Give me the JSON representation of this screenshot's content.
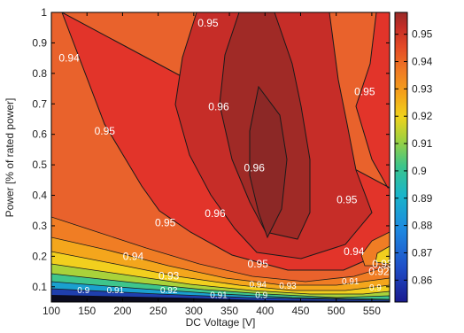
{
  "chart_data": {
    "type": "contour",
    "title": "",
    "xlabel": "DC Voltage [V]",
    "ylabel": "Power [% of rated power]",
    "xlim": [
      100,
      575
    ],
    "ylim": [
      0.05,
      1
    ],
    "x_ticks": [
      100,
      150,
      200,
      250,
      300,
      350,
      400,
      450,
      500,
      550
    ],
    "y_ticks": [
      0.1,
      0.2,
      0.3,
      0.4,
      0.5,
      0.6,
      0.7,
      0.8,
      0.9,
      1
    ],
    "colorbar": {
      "min": 0.852,
      "max": 0.958,
      "ticks": [
        0.86,
        0.87,
        0.88,
        0.89,
        0.9,
        0.91,
        0.92,
        0.93,
        0.94,
        0.95
      ],
      "tick_labels": [
        "0.86",
        "0.87",
        "0.88",
        "0.89",
        "0.9",
        "0.91",
        "0.92",
        "0.93",
        "0.94",
        "0.95"
      ]
    },
    "contour_labels": [
      {
        "text": "0.95",
        "x": 320,
        "y": 0.965
      },
      {
        "text": "0.94",
        "x": 125,
        "y": 0.85
      },
      {
        "text": "0.95",
        "x": 540,
        "y": 0.74
      },
      {
        "text": "0.96",
        "x": 335,
        "y": 0.69
      },
      {
        "text": "0.95",
        "x": 175,
        "y": 0.61
      },
      {
        "text": "0.96",
        "x": 385,
        "y": 0.49
      },
      {
        "text": "0.96",
        "x": 330,
        "y": 0.34
      },
      {
        "text": "0.95",
        "x": 260,
        "y": 0.31
      },
      {
        "text": "0.95",
        "x": 515,
        "y": 0.385
      },
      {
        "text": "0.94",
        "x": 215,
        "y": 0.2
      },
      {
        "text": "0.95",
        "x": 390,
        "y": 0.175
      },
      {
        "text": "0.94",
        "x": 525,
        "y": 0.215
      },
      {
        "text": "0.93",
        "x": 265,
        "y": 0.135
      },
      {
        "text": "0.92",
        "x": 265,
        "y": 0.09
      },
      {
        "text": "0.9",
        "x": 145,
        "y": 0.09
      },
      {
        "text": "0.91",
        "x": 190,
        "y": 0.09
      },
      {
        "text": "0.91",
        "x": 335,
        "y": 0.075
      },
      {
        "text": "0.94",
        "x": 390,
        "y": 0.11
      },
      {
        "text": "0.9",
        "x": 395,
        "y": 0.075
      },
      {
        "text": "0.93",
        "x": 432,
        "y": 0.105
      },
      {
        "text": "0.91",
        "x": 520,
        "y": 0.12
      },
      {
        "text": "0.9",
        "x": 555,
        "y": 0.1
      },
      {
        "text": "0.92",
        "x": 560,
        "y": 0.15
      },
      {
        "text": "0.93",
        "x": 565,
        "y": 0.175
      }
    ]
  }
}
